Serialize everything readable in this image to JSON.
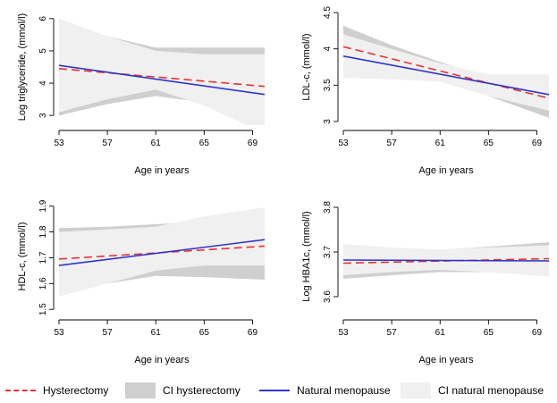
{
  "colors": {
    "hysterectomy": "#e8322e",
    "natural": "#2f36c8",
    "ci_hysterectomy": "#cfcfcf",
    "ci_natural": "#f0f0f0"
  },
  "legend": [
    {
      "label": "Hysterectomy",
      "key": "dash",
      "icon": "red-dashed-line"
    },
    {
      "label": "CI hysterectomy",
      "key": "box-dark",
      "icon": "gray-box"
    },
    {
      "label": "Natural menopause",
      "key": "solid",
      "icon": "blue-solid-line"
    },
    {
      "label": "CI natural menopause",
      "key": "box-light",
      "icon": "light-gray-box"
    }
  ],
  "chart_data": [
    {
      "type": "line",
      "ylabel": "Log triglyceride, (mmol/l)",
      "xlabel": "Age in years",
      "xlim": [
        53,
        70
      ],
      "ylim": [
        2.7,
        6.3
      ],
      "xticks": [
        53,
        57,
        61,
        65,
        69
      ],
      "yticks": [
        3,
        4,
        5,
        6
      ],
      "series": [
        {
          "name": "Hysterectomy",
          "x": [
            53,
            70
          ],
          "y": [
            4.45,
            3.9
          ]
        },
        {
          "name": "Natural menopause",
          "x": [
            53,
            70
          ],
          "y": [
            4.55,
            3.65
          ]
        }
      ],
      "ci": [
        {
          "name": "CI hysterectomy",
          "x": [
            53,
            57,
            61,
            65,
            70
          ],
          "lower": [
            3.0,
            3.35,
            3.6,
            3.4,
            2.9
          ],
          "upper": [
            5.85,
            5.45,
            5.1,
            5.1,
            5.1
          ]
        },
        {
          "name": "CI natural menopause",
          "x": [
            53,
            57,
            61,
            65,
            70
          ],
          "lower": [
            3.1,
            3.5,
            3.8,
            3.3,
            2.45
          ],
          "upper": [
            6.0,
            5.45,
            5.0,
            4.9,
            4.9
          ]
        }
      ]
    },
    {
      "type": "line",
      "ylabel": "LDL-c, (mmol/l)",
      "xlabel": "Age in years",
      "xlim": [
        53,
        70
      ],
      "ylim": [
        2.95,
        4.55
      ],
      "xticks": [
        53,
        57,
        61,
        65,
        69
      ],
      "yticks": [
        3,
        3.5,
        4,
        4.5
      ],
      "series": [
        {
          "name": "Hysterectomy",
          "x": [
            53,
            70
          ],
          "y": [
            4.03,
            3.32
          ]
        },
        {
          "name": "Natural menopause",
          "x": [
            53,
            70
          ],
          "y": [
            3.9,
            3.37
          ]
        }
      ],
      "ci": [
        {
          "name": "CI hysterectomy",
          "x": [
            53,
            57,
            61,
            65,
            70
          ],
          "lower": [
            3.75,
            3.7,
            3.6,
            3.35,
            3.05
          ],
          "upper": [
            4.32,
            4.05,
            3.82,
            3.6,
            3.6
          ]
        },
        {
          "name": "CI natural menopause",
          "x": [
            53,
            57,
            61,
            65,
            70
          ],
          "lower": [
            3.6,
            3.58,
            3.55,
            3.35,
            3.15
          ],
          "upper": [
            4.2,
            4.0,
            3.8,
            3.65,
            3.65
          ]
        }
      ]
    },
    {
      "type": "line",
      "ylabel": "HDL-c, (mmol/l)",
      "xlabel": "Age in years",
      "xlim": [
        53,
        70
      ],
      "ylim": [
        1.48,
        1.93
      ],
      "xticks": [
        53,
        57,
        61,
        65,
        69
      ],
      "yticks": [
        1.5,
        1.6,
        1.7,
        1.8,
        1.9
      ],
      "series": [
        {
          "name": "Hysterectomy",
          "x": [
            53,
            70
          ],
          "y": [
            1.695,
            1.745
          ]
        },
        {
          "name": "Natural menopause",
          "x": [
            53,
            70
          ],
          "y": [
            1.67,
            1.77
          ]
        }
      ],
      "ci": [
        {
          "name": "CI hysterectomy",
          "x": [
            53,
            57,
            61,
            65,
            70
          ],
          "lower": [
            1.575,
            1.6,
            1.63,
            1.625,
            1.615
          ],
          "upper": [
            1.815,
            1.82,
            1.83,
            1.84,
            1.85
          ]
        },
        {
          "name": "CI natural menopause",
          "x": [
            53,
            57,
            61,
            65,
            70
          ],
          "lower": [
            1.55,
            1.6,
            1.65,
            1.67,
            1.67
          ],
          "upper": [
            1.8,
            1.81,
            1.82,
            1.86,
            1.895
          ]
        }
      ]
    },
    {
      "type": "line",
      "ylabel": "Log HBA1c, (mmol/l)",
      "xlabel": "Age in years",
      "xlim": [
        53,
        70
      ],
      "ylim": [
        3.56,
        3.82
      ],
      "xticks": [
        53,
        57,
        61,
        65,
        69
      ],
      "yticks": [
        3.6,
        3.7,
        3.8
      ],
      "series": [
        {
          "name": "Hysterectomy",
          "x": [
            53,
            70
          ],
          "y": [
            3.675,
            3.685
          ]
        },
        {
          "name": "Natural menopause",
          "x": [
            53,
            70
          ],
          "y": [
            3.682,
            3.68
          ]
        }
      ],
      "ci": [
        {
          "name": "CI hysterectomy",
          "x": [
            53,
            57,
            61,
            65,
            70
          ],
          "lower": [
            3.64,
            3.648,
            3.655,
            3.655,
            3.648
          ],
          "upper": [
            3.71,
            3.706,
            3.705,
            3.712,
            3.722
          ]
        },
        {
          "name": "CI natural menopause",
          "x": [
            53,
            57,
            61,
            65,
            70
          ],
          "lower": [
            3.648,
            3.655,
            3.66,
            3.655,
            3.645
          ],
          "upper": [
            3.718,
            3.71,
            3.706,
            3.71,
            3.715
          ]
        }
      ]
    }
  ]
}
